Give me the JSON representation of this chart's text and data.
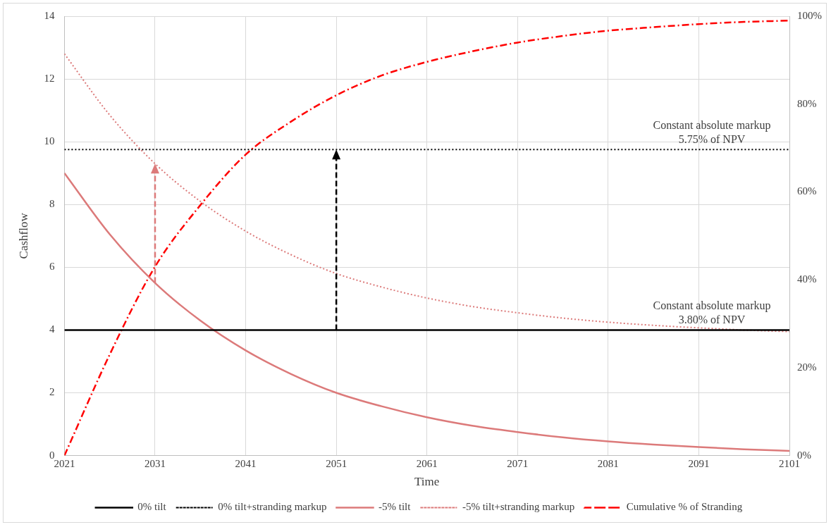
{
  "chart_data": {
    "type": "line",
    "xlabel": "Time",
    "ylabel": "Cashflow",
    "x": [
      2021,
      2026,
      2031,
      2036,
      2041,
      2046,
      2051,
      2056,
      2061,
      2066,
      2071,
      2076,
      2081,
      2086,
      2091,
      2096,
      2101
    ],
    "xlim": [
      2021,
      2101
    ],
    "xticks": [
      2021,
      2031,
      2041,
      2051,
      2061,
      2071,
      2081,
      2091,
      2101
    ],
    "ylim": [
      0,
      14
    ],
    "yticks": [
      0,
      2,
      4,
      6,
      8,
      10,
      12,
      14
    ],
    "y2lim": [
      0,
      100
    ],
    "y2ticks": [
      {
        "value": 0,
        "label": "0%"
      },
      {
        "value": 20,
        "label": "20%"
      },
      {
        "value": 40,
        "label": "40%"
      },
      {
        "value": 60,
        "label": "60%"
      },
      {
        "value": 80,
        "label": "80%"
      },
      {
        "value": 100,
        "label": "100%"
      }
    ],
    "grid": true,
    "legend": "bottom",
    "marker": "none",
    "series": [
      {
        "name": "0% tilt",
        "color": "#000000",
        "line_style": "solid",
        "values": [
          4,
          4,
          4,
          4,
          4,
          4,
          4,
          4,
          4,
          4,
          4,
          4,
          4,
          4,
          4,
          4,
          4
        ]
      },
      {
        "name": "0% tilt+stranding markup",
        "color": "#000000",
        "line_style": "dotted",
        "values": [
          9.75,
          9.75,
          9.75,
          9.75,
          9.75,
          9.75,
          9.75,
          9.75,
          9.75,
          9.75,
          9.75,
          9.75,
          9.75,
          9.75,
          9.75,
          9.75,
          9.75
        ]
      },
      {
        "name": "-5% tilt",
        "color": "#dc7a7a",
        "line_style": "solid",
        "values": [
          9.0,
          7.05,
          5.5,
          4.3,
          3.35,
          2.6,
          2.0,
          1.57,
          1.22,
          0.95,
          0.75,
          0.58,
          0.45,
          0.35,
          0.27,
          0.2,
          0.15
        ]
      },
      {
        "name": "-5% tilt+stranding markup",
        "color": "#dc7a7a",
        "line_style": "dotted",
        "values": [
          12.8,
          10.85,
          9.3,
          8.1,
          7.15,
          6.4,
          5.8,
          5.37,
          5.02,
          4.75,
          4.55,
          4.38,
          4.25,
          4.15,
          4.07,
          4.0,
          3.95
        ]
      },
      {
        "name": "Cumulative % of Stranding",
        "color": "#ff0000",
        "line_style": "dashed",
        "axis": "y2",
        "values": [
          0,
          23,
          43,
          57,
          68.5,
          76,
          82,
          86.5,
          89.6,
          92,
          94,
          95.5,
          96.7,
          97.5,
          98.2,
          98.7,
          99
        ]
      }
    ],
    "annotations": [
      "Constant absolute markup\n5.75% of NPV",
      "Constant absolute markup\n3.80% of NPV"
    ]
  }
}
